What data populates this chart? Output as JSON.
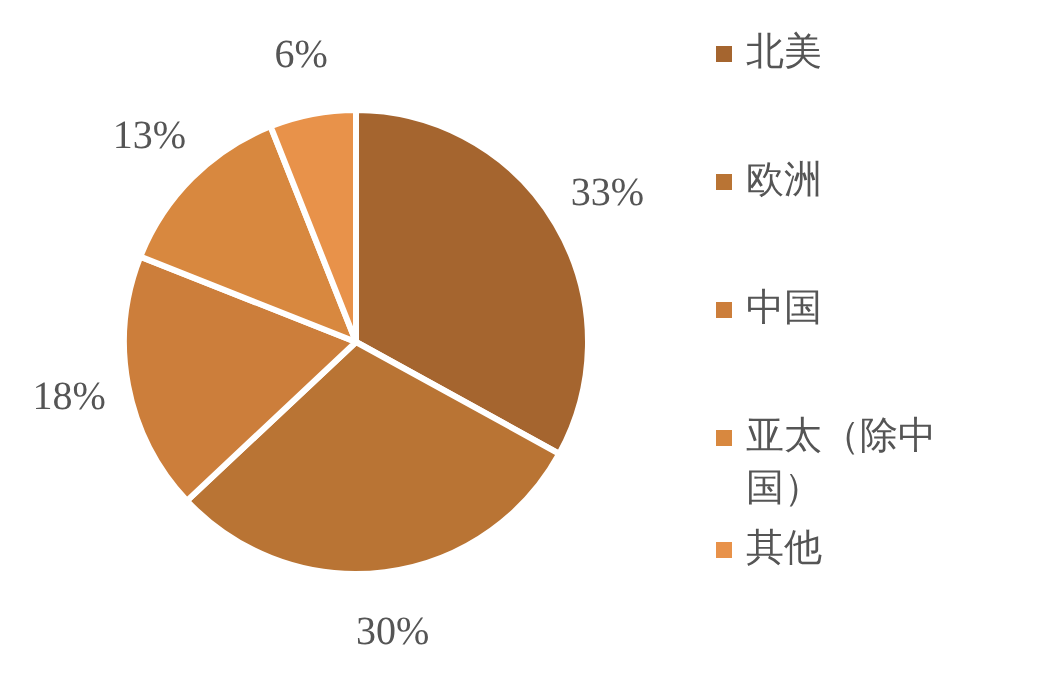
{
  "chart_data": {
    "type": "pie",
    "categories": [
      "北美",
      "欧洲",
      "中国",
      "亚太（除中国）",
      "其他"
    ],
    "values": [
      33,
      30,
      18,
      13,
      6
    ],
    "colors": [
      "#a5652f",
      "#b97434",
      "#cc7e3b",
      "#d8883f",
      "#e8924a"
    ],
    "value_labels": [
      "33%",
      "30%",
      "18%",
      "13%",
      "6%"
    ],
    "legend": "right"
  }
}
